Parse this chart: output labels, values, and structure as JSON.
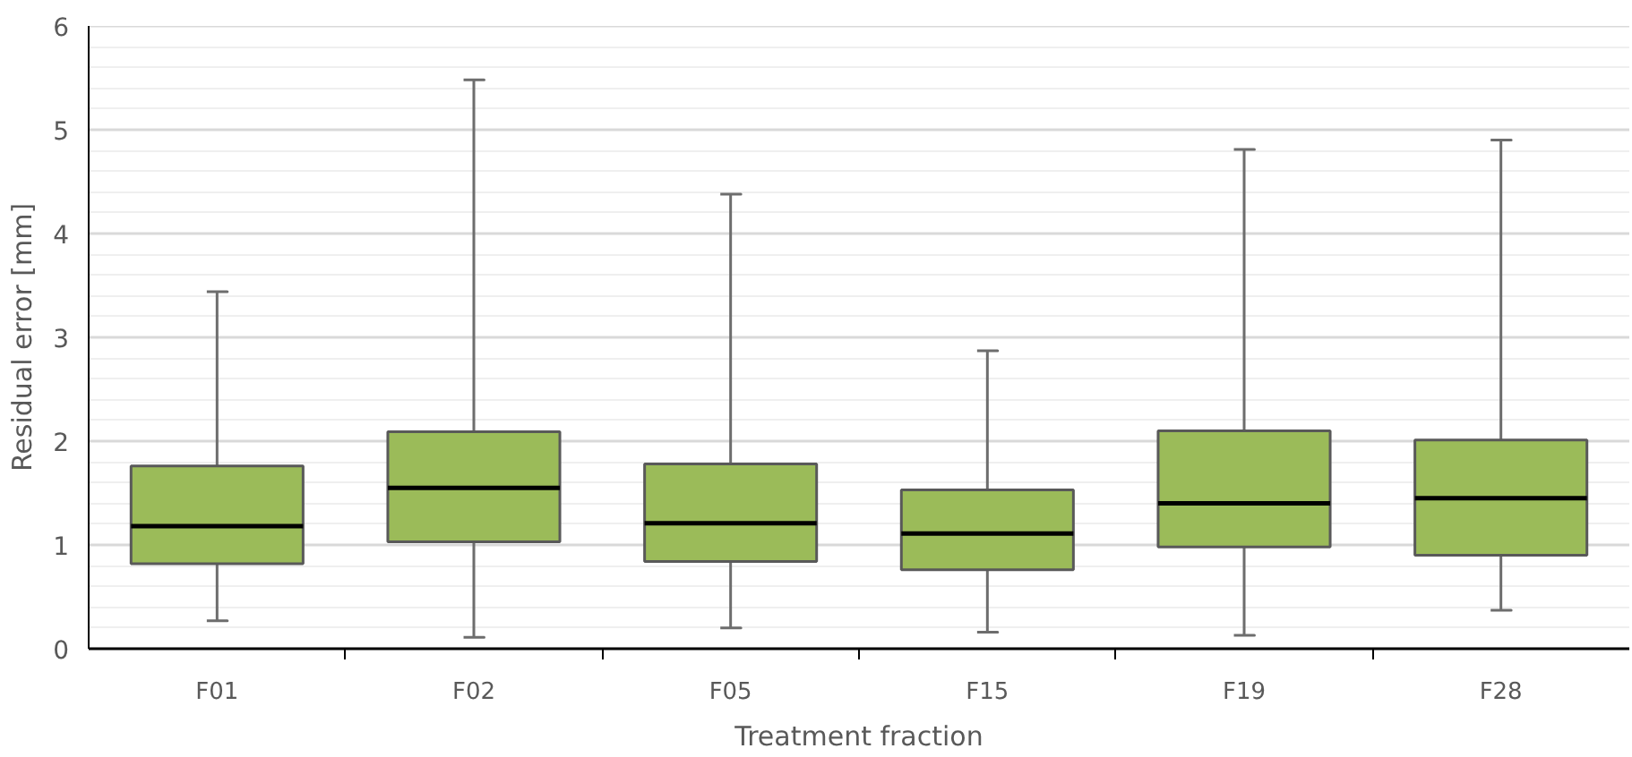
{
  "chart_data": {
    "type": "box",
    "xlabel": "Treatment fraction",
    "ylabel": "Residual error [mm]",
    "categories": [
      "F01",
      "F02",
      "F05",
      "F15",
      "F19",
      "F28"
    ],
    "series": [
      {
        "color": "#9bbb59",
        "boxes": [
          {
            "low": 0.27,
            "q1": 0.82,
            "median": 1.18,
            "q3": 1.76,
            "high": 3.44
          },
          {
            "low": 0.11,
            "q1": 1.03,
            "median": 1.55,
            "q3": 2.09,
            "high": 5.48
          },
          {
            "low": 0.2,
            "q1": 0.84,
            "median": 1.21,
            "q3": 1.78,
            "high": 4.38
          },
          {
            "low": 0.16,
            "q1": 0.76,
            "median": 1.11,
            "q3": 1.53,
            "high": 2.87
          },
          {
            "low": 0.13,
            "q1": 0.98,
            "median": 1.4,
            "q3": 2.1,
            "high": 4.81
          },
          {
            "low": 0.37,
            "q1": 0.9,
            "median": 1.45,
            "q3": 2.01,
            "high": 4.9
          }
        ]
      }
    ],
    "ylim": [
      0,
      6
    ],
    "yticks": [
      0,
      1,
      2,
      3,
      4,
      5,
      6
    ],
    "grid": "y"
  }
}
